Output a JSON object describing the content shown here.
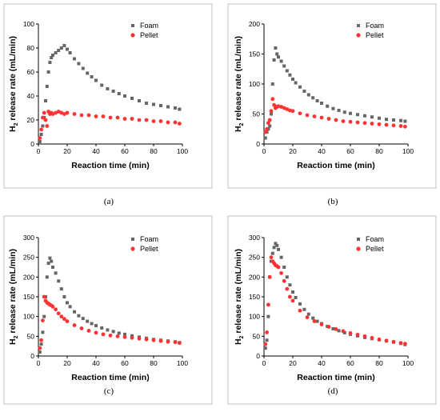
{
  "chart_data": [
    {
      "type": "scatter",
      "caption": "(a)",
      "xlabel": "Reaction time (min)",
      "ylabel": "H2 release rate (mL/min)",
      "xlim": [
        0,
        100
      ],
      "ylim": [
        0,
        100
      ],
      "xticks": [
        0,
        20,
        40,
        60,
        80,
        100
      ],
      "yticks": [
        0,
        20,
        40,
        60,
        80,
        100
      ],
      "legend": "top-right",
      "series": [
        {
          "name": "Foam",
          "color": "#666666",
          "marker": "square",
          "x": [
            1,
            2,
            3,
            4,
            5,
            6,
            7,
            8,
            9,
            10,
            12,
            14,
            16,
            18,
            20,
            22,
            25,
            28,
            31,
            34,
            37,
            40,
            44,
            48,
            52,
            56,
            60,
            65,
            70,
            75,
            80,
            85,
            90,
            95,
            98
          ],
          "y": [
            2,
            8,
            15,
            22,
            36,
            48,
            60,
            68,
            72,
            74,
            76,
            78,
            80,
            82,
            79,
            76,
            71,
            67,
            63,
            59,
            56,
            53,
            49,
            46,
            44,
            42,
            40,
            38,
            36,
            34,
            33,
            32,
            31,
            30,
            29
          ]
        },
        {
          "name": "Pellet",
          "color": "#ff3333",
          "marker": "circle",
          "x": [
            1,
            2,
            3,
            4,
            5,
            6,
            7,
            8,
            9,
            10,
            12,
            14,
            16,
            18,
            20,
            25,
            30,
            35,
            40,
            45,
            50,
            55,
            60,
            65,
            70,
            75,
            80,
            85,
            90,
            95,
            98
          ],
          "y": [
            5,
            12,
            22,
            26,
            20,
            15,
            27,
            25,
            26,
            25,
            26,
            27,
            26,
            25,
            26,
            25,
            24,
            24,
            23,
            23,
            22,
            22,
            21,
            21,
            20,
            20,
            19,
            19,
            18,
            18,
            17
          ]
        }
      ]
    },
    {
      "type": "scatter",
      "caption": "(b)",
      "xlabel": "Reaction time (min)",
      "ylabel": "H2 release rate (mL/min)",
      "xlim": [
        0,
        100
      ],
      "ylim": [
        0,
        200
      ],
      "xticks": [
        0,
        20,
        40,
        60,
        80,
        100
      ],
      "yticks": [
        0,
        50,
        100,
        150,
        200
      ],
      "legend": "top-right",
      "series": [
        {
          "name": "Foam",
          "color": "#666666",
          "marker": "square",
          "x": [
            1,
            2,
            3,
            4,
            5,
            6,
            7,
            8,
            9,
            10,
            12,
            14,
            16,
            18,
            20,
            22,
            25,
            28,
            31,
            34,
            37,
            40,
            44,
            48,
            52,
            56,
            60,
            65,
            70,
            75,
            80,
            85,
            90,
            95,
            98
          ],
          "y": [
            10,
            20,
            25,
            30,
            50,
            100,
            140,
            160,
            150,
            145,
            138,
            130,
            122,
            115,
            108,
            102,
            95,
            88,
            82,
            77,
            72,
            68,
            63,
            59,
            56,
            53,
            51,
            49,
            47,
            45,
            43,
            41,
            40,
            39,
            38
          ]
        },
        {
          "name": "Pellet",
          "color": "#ff3333",
          "marker": "circle",
          "x": [
            1,
            2,
            3,
            4,
            5,
            6,
            7,
            8,
            9,
            10,
            12,
            14,
            16,
            18,
            20,
            25,
            30,
            35,
            40,
            45,
            50,
            55,
            60,
            65,
            70,
            75,
            80,
            85,
            90,
            95,
            98
          ],
          "y": [
            20,
            25,
            35,
            40,
            55,
            75,
            65,
            60,
            62,
            63,
            62,
            60,
            58,
            56,
            55,
            51,
            48,
            46,
            44,
            42,
            40,
            38,
            37,
            36,
            35,
            34,
            33,
            32,
            31,
            30,
            29
          ]
        }
      ]
    },
    {
      "type": "scatter",
      "caption": "(c)",
      "xlabel": "Reaction time (min)",
      "ylabel": "H2 release rate (mL/min)",
      "xlim": [
        0,
        100
      ],
      "ylim": [
        0,
        300
      ],
      "xticks": [
        0,
        20,
        40,
        60,
        80,
        100
      ],
      "yticks": [
        0,
        50,
        100,
        150,
        200,
        250,
        300
      ],
      "legend": "top-right",
      "series": [
        {
          "name": "Foam",
          "color": "#666666",
          "marker": "square",
          "x": [
            1,
            2,
            3,
            4,
            5,
            6,
            7,
            8,
            9,
            10,
            12,
            14,
            16,
            18,
            20,
            22,
            25,
            28,
            31,
            34,
            37,
            40,
            44,
            48,
            52,
            56,
            60,
            65,
            70,
            75,
            80,
            85,
            90,
            95,
            98
          ],
          "y": [
            10,
            30,
            60,
            100,
            150,
            200,
            235,
            248,
            240,
            225,
            210,
            190,
            170,
            150,
            135,
            125,
            112,
            102,
            95,
            88,
            82,
            77,
            71,
            66,
            62,
            58,
            55,
            51,
            48,
            45,
            42,
            40,
            38,
            36,
            34
          ]
        },
        {
          "name": "Pellet",
          "color": "#ff3333",
          "marker": "circle",
          "x": [
            1,
            2,
            3,
            4,
            5,
            6,
            7,
            8,
            9,
            10,
            12,
            14,
            16,
            18,
            20,
            25,
            30,
            35,
            40,
            45,
            50,
            55,
            60,
            65,
            70,
            75,
            80,
            85,
            90,
            95,
            98
          ],
          "y": [
            20,
            40,
            90,
            150,
            140,
            135,
            133,
            130,
            128,
            125,
            118,
            108,
            100,
            94,
            88,
            78,
            70,
            64,
            59,
            55,
            52,
            50,
            48,
            46,
            44,
            42,
            40,
            38,
            36,
            35,
            33
          ]
        }
      ]
    },
    {
      "type": "scatter",
      "caption": "(d)",
      "xlabel": "Reaction time (min)",
      "ylabel": "H2 release rate (mL/min)",
      "xlim": [
        0,
        100
      ],
      "ylim": [
        0,
        300
      ],
      "xticks": [
        0,
        20,
        40,
        60,
        80,
        100
      ],
      "yticks": [
        0,
        50,
        100,
        150,
        200,
        250,
        300
      ],
      "legend": "top-right",
      "series": [
        {
          "name": "Foam",
          "color": "#666666",
          "marker": "square",
          "x": [
            1,
            2,
            3,
            4,
            5,
            6,
            7,
            8,
            9,
            10,
            12,
            14,
            16,
            18,
            20,
            22,
            25,
            28,
            31,
            34,
            37,
            40,
            44,
            48,
            52,
            56,
            60,
            65,
            70,
            75,
            80,
            85,
            90,
            95,
            98
          ],
          "y": [
            20,
            40,
            100,
            200,
            240,
            260,
            275,
            285,
            280,
            270,
            250,
            225,
            200,
            180,
            162,
            148,
            132,
            118,
            106,
            96,
            88,
            82,
            75,
            69,
            64,
            59,
            55,
            51,
            47,
            44,
            41,
            38,
            35,
            32,
            29
          ]
        },
        {
          "name": "Pellet",
          "color": "#ff3333",
          "marker": "circle",
          "x": [
            1,
            2,
            3,
            4,
            5,
            6,
            7,
            8,
            9,
            10,
            12,
            14,
            16,
            18,
            20,
            25,
            30,
            35,
            40,
            45,
            50,
            55,
            60,
            65,
            70,
            75,
            80,
            85,
            90,
            95,
            98
          ],
          "y": [
            30,
            60,
            130,
            200,
            250,
            240,
            235,
            230,
            228,
            225,
            210,
            190,
            170,
            150,
            140,
            115,
            98,
            88,
            80,
            74,
            68,
            63,
            58,
            54,
            50,
            46,
            42,
            39,
            36,
            33,
            31
          ]
        }
      ]
    }
  ]
}
